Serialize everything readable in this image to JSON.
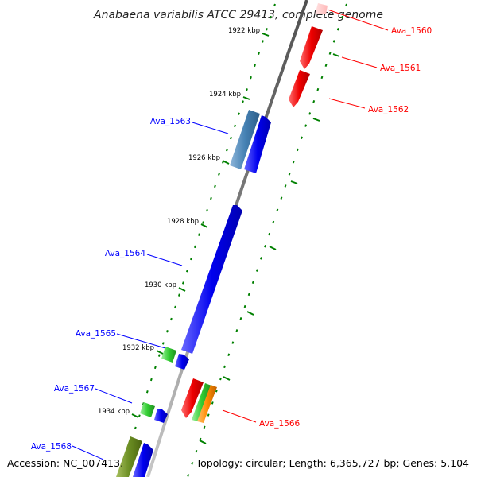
{
  "title": "Anabaena variabilis ATCC 29413, complete genome",
  "accession_text": "Accession: NC_007413.",
  "summary_text": "Topology: circular; Length: 6,365,727 bp; Genes: 5,104",
  "colors": {
    "forward_label": "#0000ff",
    "reverse_label": "#ff0000",
    "tick": "#008000",
    "backbone": "#808080"
  },
  "scale": {
    "unit": "kbp",
    "ticks": [
      {
        "kbp": 1922,
        "label": "1922 kbp"
      },
      {
        "kbp": 1924,
        "label": "1924 kbp"
      },
      {
        "kbp": 1926,
        "label": "1926 kbp"
      },
      {
        "kbp": 1928,
        "label": "1928 kbp"
      },
      {
        "kbp": 1930,
        "label": "1930 kbp"
      },
      {
        "kbp": 1932,
        "label": "1932 kbp"
      },
      {
        "kbp": 1934,
        "label": "1934 kbp"
      }
    ]
  },
  "genes": [
    {
      "name": "Ava_1560",
      "strand": "reverse",
      "color": "#ffc8c8"
    },
    {
      "name": "Ava_1561",
      "strand": "reverse",
      "color": "#ff0000"
    },
    {
      "name": "Ava_1562",
      "strand": "reverse",
      "color": "#ff0000"
    },
    {
      "name": "Ava_1563",
      "strand": "forward",
      "color": "#0000ff",
      "highlight_color": "#4682b4"
    },
    {
      "name": "Ava_1564",
      "strand": "forward",
      "color": "#0000ff"
    },
    {
      "name": "Ava_1565",
      "strand": "forward",
      "color": "#0000ff",
      "highlight_color": "#32cd32"
    },
    {
      "name": "Ava_1566",
      "strand": "reverse",
      "color": "#ff0000",
      "highlight_colors": [
        "#32cd32",
        "#ff8c00"
      ]
    },
    {
      "name": "Ava_1567",
      "strand": "forward",
      "color": "#0000ff",
      "highlight_color": "#32cd32"
    },
    {
      "name": "Ava_1568",
      "strand": "forward",
      "color": "#0000ff",
      "highlight_color": "#6b8e23"
    }
  ]
}
